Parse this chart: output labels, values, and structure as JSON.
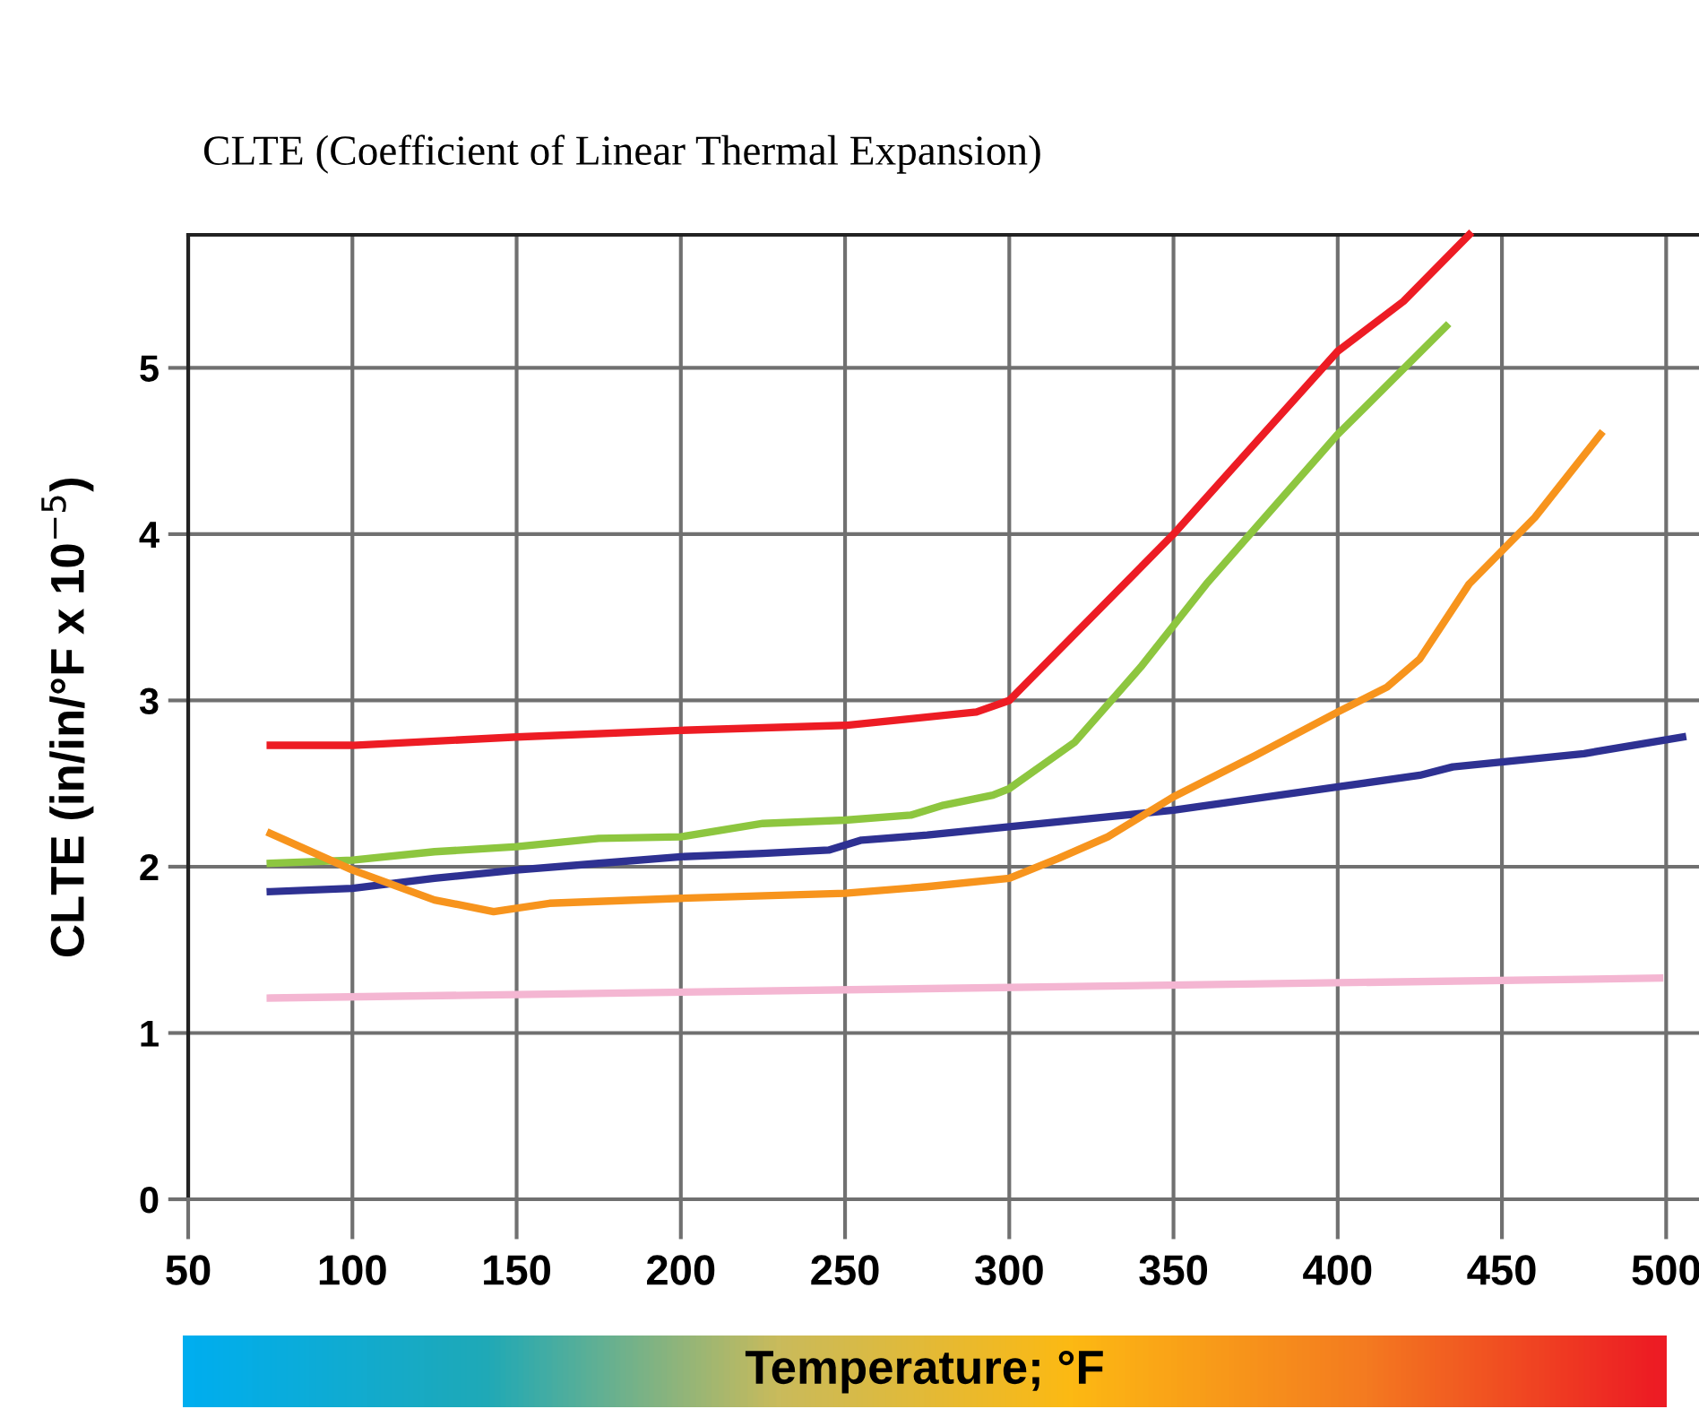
{
  "chart_data": {
    "type": "line",
    "title": "CLTE (Coefficient of Linear Thermal Expansion)",
    "xlabel": "Temperature; °F",
    "ylabel": "CLTE (in/in/°F x 10$^{−5}$)",
    "xlim": [
      50,
      510
    ],
    "ylim": [
      0,
      5.8
    ],
    "xticks": [
      50,
      100,
      150,
      200,
      250,
      300,
      350,
      400,
      450,
      500
    ],
    "yticks": [
      0,
      1,
      2,
      3,
      4,
      5
    ],
    "grid": true,
    "line_style": "solid",
    "marker": "none",
    "series": [
      {
        "color": "#2e3192",
        "x": [
          75,
          100,
          125,
          150,
          175,
          200,
          225,
          245,
          255,
          275,
          300,
          325,
          350,
          400,
          425,
          435,
          450,
          475,
          505
        ],
        "values": [
          1.85,
          1.87,
          1.93,
          1.98,
          2.02,
          2.06,
          2.08,
          2.1,
          2.16,
          2.19,
          2.24,
          2.29,
          2.34,
          2.48,
          2.55,
          2.6,
          2.63,
          2.68,
          2.78
        ]
      },
      {
        "color": "#f4b6d2",
        "x": [
          75,
          498
        ],
        "values": [
          1.21,
          1.33
        ]
      },
      {
        "color": "#ed1c24",
        "x": [
          75,
          100,
          150,
          200,
          250,
          270,
          290,
          300,
          350,
          400,
          420,
          440
        ],
        "values": [
          2.73,
          2.73,
          2.78,
          2.82,
          2.85,
          2.89,
          2.93,
          3.0,
          4.0,
          5.1,
          5.4,
          5.8
        ]
      },
      {
        "color": "#8dc63f",
        "x": [
          75,
          100,
          125,
          150,
          175,
          200,
          225,
          250,
          270,
          280,
          295,
          300,
          320,
          340,
          350,
          360,
          400,
          433
        ],
        "values": [
          2.02,
          2.04,
          2.09,
          2.12,
          2.17,
          2.18,
          2.26,
          2.28,
          2.31,
          2.37,
          2.43,
          2.47,
          2.75,
          3.2,
          3.45,
          3.7,
          4.6,
          5.25
        ]
      },
      {
        "color": "#f7941d",
        "x": [
          75,
          100,
          125,
          143,
          160,
          200,
          250,
          275,
          300,
          315,
          330,
          350,
          375,
          400,
          415,
          425,
          440,
          460,
          480
        ],
        "values": [
          2.2,
          1.98,
          1.8,
          1.73,
          1.78,
          1.81,
          1.84,
          1.88,
          1.93,
          2.05,
          2.18,
          2.42,
          2.67,
          2.93,
          3.08,
          3.25,
          3.7,
          4.1,
          4.6
        ]
      }
    ]
  }
}
